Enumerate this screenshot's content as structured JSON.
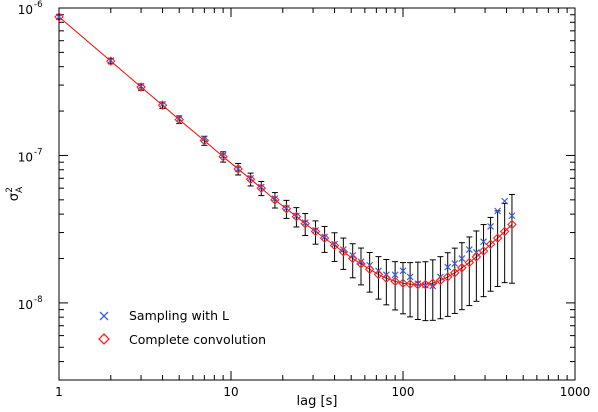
{
  "chart_data": {
    "type": "scatter",
    "x_scale": "log",
    "y_scale": "log",
    "xlim": [
      1,
      1000
    ],
    "ylim": [
      3e-09,
      1e-06
    ],
    "xlabel": "lag [s]",
    "ylabel": "σA²",
    "x_ticks": [
      {
        "value": 1,
        "label": "1"
      },
      {
        "value": 10,
        "label": "10"
      },
      {
        "value": 100,
        "label": "100"
      },
      {
        "value": 1000,
        "label": "1000"
      }
    ],
    "y_ticks": [
      {
        "value": 1e-06,
        "base": "10",
        "exp": "-6"
      },
      {
        "value": 1e-07,
        "base": "10",
        "exp": "-7"
      },
      {
        "value": 1e-08,
        "base": "10",
        "exp": "-8"
      }
    ],
    "legend_position": "bottom-left",
    "series": [
      {
        "name": "Sampling with L",
        "marker": "x",
        "color": "#3a5fe0",
        "x": [
          1,
          2,
          3,
          4,
          5,
          7,
          9,
          11,
          13,
          15,
          18,
          21,
          24,
          27,
          31,
          35,
          40,
          45,
          51,
          57,
          64,
          72,
          80,
          90,
          100,
          110,
          122,
          135,
          149,
          165,
          182,
          200,
          220,
          243,
          267,
          294,
          323,
          355,
          390,
          430
        ],
        "y": [
          8.7e-07,
          4.4e-07,
          2.95e-07,
          2.22e-07,
          1.78e-07,
          1.3e-07,
          1e-07,
          8.1e-08,
          7e-08,
          6.1e-08,
          5.1e-08,
          4.4e-08,
          3.9e-08,
          3.5e-08,
          3.1e-08,
          2.8e-08,
          2.5e-08,
          2.3e-08,
          2.1e-08,
          1.9e-08,
          1.8e-08,
          1.65e-08,
          1.55e-08,
          1.55e-08,
          1.65e-08,
          1.5e-08,
          1.35e-08,
          1.32e-08,
          1.3e-08,
          1.5e-08,
          1.75e-08,
          1.85e-08,
          2e-08,
          2.3e-08,
          2.2e-08,
          2.6e-08,
          3.3e-08,
          4.2e-08,
          4.9e-08,
          3.9e-08
        ]
      },
      {
        "name": "Complete convolution",
        "marker": "diamond",
        "color": "#ff2020",
        "x": [
          1,
          2,
          3,
          4,
          5,
          7,
          9,
          11,
          13,
          15,
          18,
          21,
          24,
          27,
          31,
          35,
          40,
          45,
          51,
          57,
          64,
          72,
          80,
          90,
          100,
          110,
          122,
          135,
          149,
          165,
          182,
          200,
          220,
          243,
          267,
          294,
          323,
          355,
          390,
          430
        ],
        "y": [
          8.7e-07,
          4.36e-07,
          2.91e-07,
          2.19e-07,
          1.75e-07,
          1.26e-07,
          9.8e-08,
          8.1e-08,
          6.9e-08,
          6e-08,
          5e-08,
          4.35e-08,
          3.85e-08,
          3.45e-08,
          3.05e-08,
          2.75e-08,
          2.45e-08,
          2.22e-08,
          2e-08,
          1.84e-08,
          1.69e-08,
          1.56e-08,
          1.47e-08,
          1.4e-08,
          1.36e-08,
          1.34e-08,
          1.33e-08,
          1.33e-08,
          1.36e-08,
          1.42e-08,
          1.5e-08,
          1.6e-08,
          1.73e-08,
          1.88e-08,
          2.05e-08,
          2.25e-08,
          2.5e-08,
          2.75e-08,
          3.05e-08,
          3.4e-08
        ]
      }
    ],
    "error_bars": {
      "color": "#000000",
      "relative_halfwidth": [
        0.035,
        0.04,
        0.05,
        0.05,
        0.06,
        0.07,
        0.08,
        0.09,
        0.1,
        0.11,
        0.12,
        0.14,
        0.15,
        0.17,
        0.18,
        0.2,
        0.22,
        0.24,
        0.26,
        0.28,
        0.3,
        0.32,
        0.34,
        0.36,
        0.38,
        0.4,
        0.42,
        0.43,
        0.44,
        0.45,
        0.46,
        0.47,
        0.48,
        0.49,
        0.5,
        0.51,
        0.52,
        0.53,
        0.55,
        0.6
      ]
    },
    "fit_line": {
      "color": "#ff0000",
      "description_visible": false
    }
  }
}
